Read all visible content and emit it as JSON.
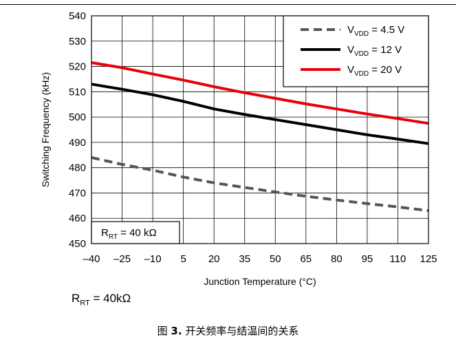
{
  "chart_data": {
    "type": "line",
    "xlabel": "Junction Temperature (°C)",
    "ylabel": "Switching Frequency (kHz)",
    "x_ticks": [
      "–40",
      "–25",
      "–10",
      "5",
      "20",
      "35",
      "50",
      "65",
      "80",
      "95",
      "110",
      "125"
    ],
    "y_ticks": [
      450,
      460,
      470,
      480,
      490,
      500,
      510,
      520,
      530,
      540
    ],
    "xlim": [
      -40,
      125
    ],
    "ylim": [
      450,
      540
    ],
    "grid": true,
    "legend_position": "top-right",
    "annotation": {
      "main": "R",
      "sub": "RT",
      "rest": " = 40 kΩ"
    },
    "series": [
      {
        "name_main": "V",
        "name_sub": "VDD",
        "name_rest": " = 4.5 V",
        "color": "#555555",
        "dashed": true,
        "x": [
          -40,
          -25,
          -10,
          5,
          20,
          35,
          50,
          65,
          80,
          95,
          110,
          125
        ],
        "y": [
          484,
          481.3,
          479,
          476.3,
          474,
          472.2,
          470.4,
          468.7,
          467.2,
          465.8,
          464.5,
          463
        ]
      },
      {
        "name_main": "V",
        "name_sub": "VDD",
        "name_rest": " = 12 V",
        "color": "#000000",
        "dashed": false,
        "x": [
          -40,
          -25,
          -10,
          5,
          20,
          35,
          50,
          65,
          80,
          95,
          110,
          125
        ],
        "y": [
          513,
          511,
          508.8,
          506.2,
          503.2,
          501,
          499,
          497,
          495,
          493,
          491.3,
          489.5
        ]
      },
      {
        "name_main": "V",
        "name_sub": "VDD",
        "name_rest": " = 20 V",
        "color": "#e8000b",
        "dashed": false,
        "x": [
          -40,
          -25,
          -10,
          5,
          20,
          35,
          50,
          65,
          80,
          95,
          110,
          125
        ],
        "y": [
          521.5,
          519.5,
          517,
          514.6,
          512,
          509.6,
          507.4,
          505.2,
          503.2,
          501.2,
          499.4,
          497.5
        ]
      }
    ]
  },
  "note": {
    "main": "R",
    "sub": "RT",
    "rest": " = 40kΩ"
  },
  "caption": {
    "prefix": "图 ",
    "number": "3.",
    "text": " 开关频率与结温间的关系"
  }
}
